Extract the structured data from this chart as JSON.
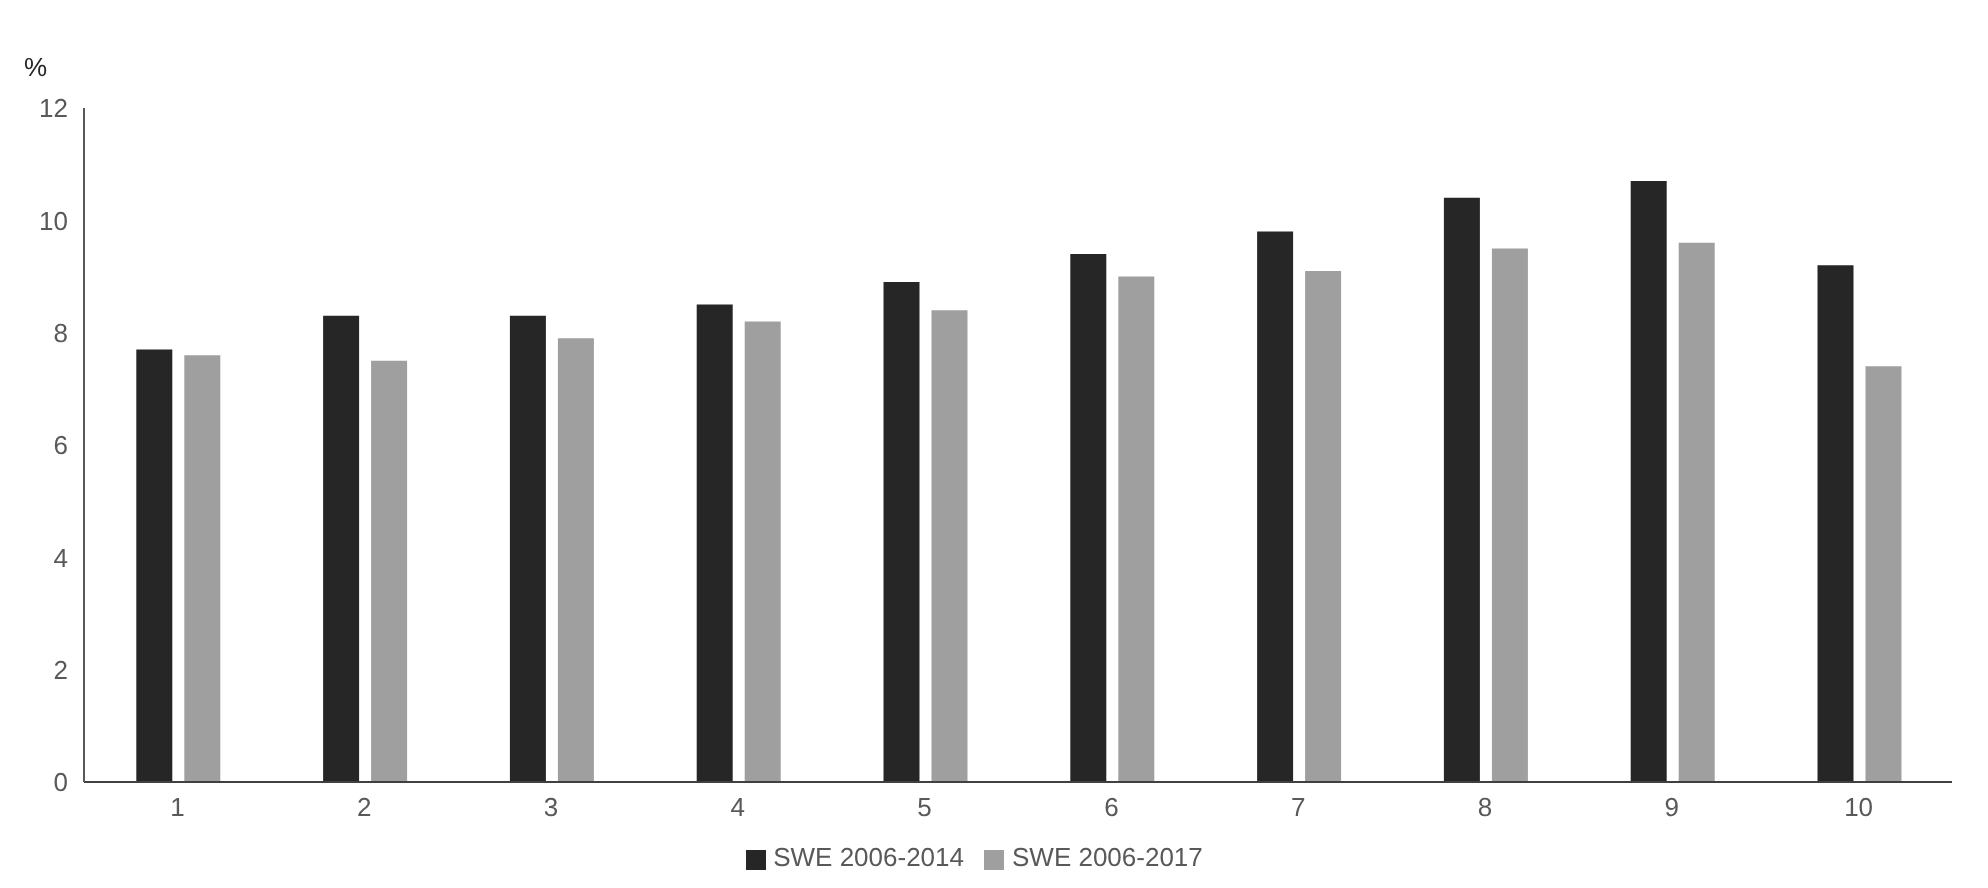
{
  "chart_data": {
    "type": "bar",
    "ylabel": "%",
    "categories": [
      "1",
      "2",
      "3",
      "4",
      "5",
      "6",
      "7",
      "8",
      "9",
      "10"
    ],
    "series": [
      {
        "name": "SWE 2006-2014",
        "color": "#262626",
        "values": [
          7.7,
          8.3,
          8.3,
          8.5,
          8.9,
          9.4,
          9.8,
          10.4,
          10.7,
          9.2
        ]
      },
      {
        "name": "SWE 2006-2017",
        "color": "#9f9f9f",
        "values": [
          7.6,
          7.5,
          7.9,
          8.2,
          8.4,
          9.0,
          9.1,
          9.5,
          9.6,
          7.4
        ]
      }
    ],
    "ylim": [
      0,
      12
    ],
    "yticks": [
      0,
      2,
      4,
      6,
      8,
      10,
      12
    ],
    "grid": false,
    "legend": "bottom"
  }
}
